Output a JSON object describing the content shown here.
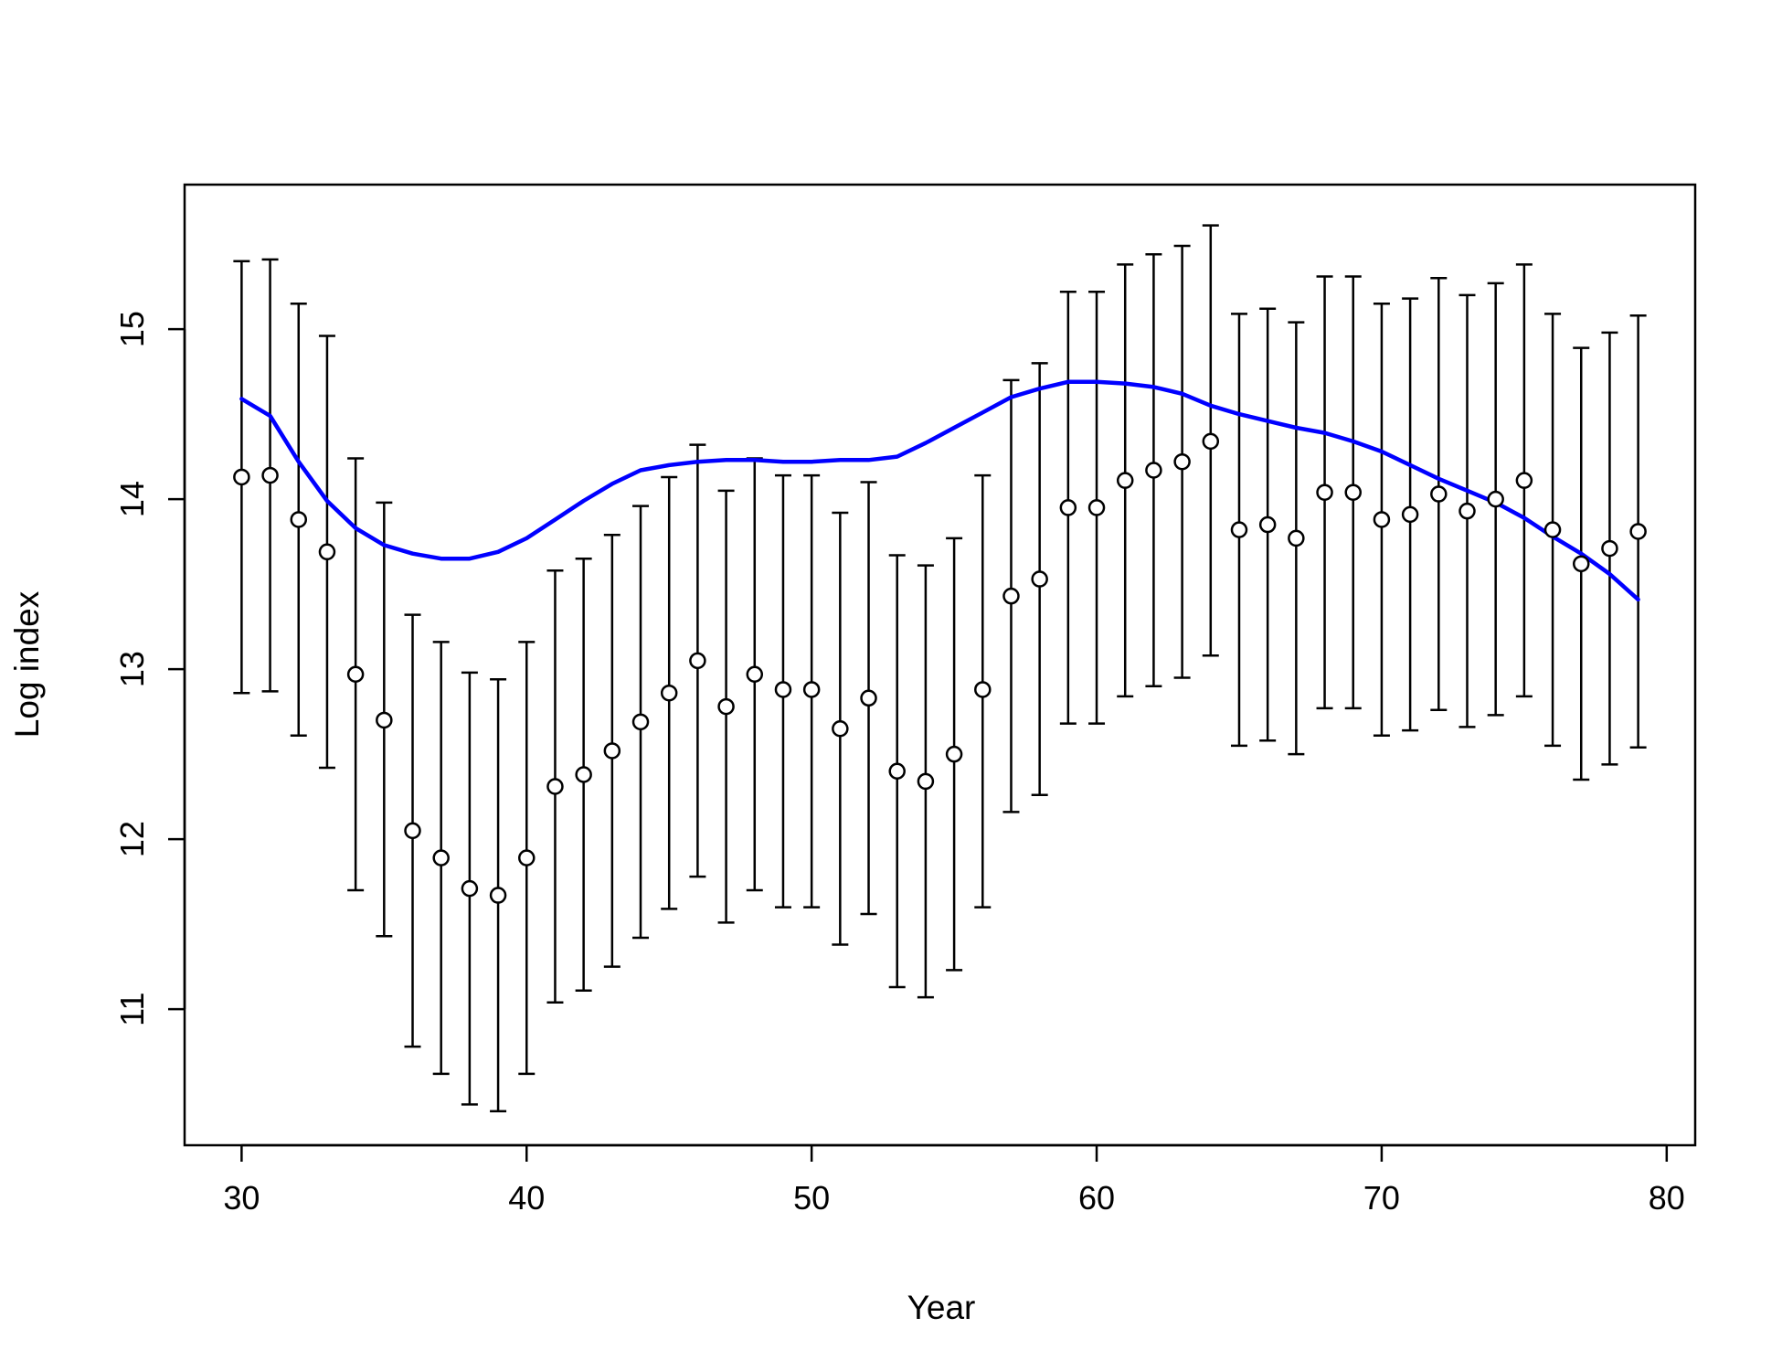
{
  "chart_data": {
    "type": "scatter",
    "title": "",
    "xlabel": "Year",
    "ylabel": "Log index",
    "xlim": [
      28,
      81
    ],
    "ylim": [
      10.2,
      15.85
    ],
    "x_ticks": [
      30,
      40,
      50,
      60,
      70,
      80
    ],
    "y_ticks": [
      11,
      12,
      13,
      14,
      15
    ],
    "grid": false,
    "colors": {
      "points": "#000000",
      "line": "#0000ff",
      "axes": "#000000"
    },
    "series": [
      {
        "kind": "points-with-error-bars",
        "x": [
          30,
          31,
          32,
          33,
          34,
          35,
          36,
          37,
          38,
          39,
          40,
          41,
          42,
          43,
          44,
          45,
          46,
          47,
          48,
          49,
          50,
          51,
          52,
          53,
          54,
          55,
          56,
          57,
          58,
          59,
          60,
          61,
          62,
          63,
          64,
          65,
          66,
          67,
          68,
          69,
          70,
          71,
          72,
          73,
          74,
          75,
          76,
          77,
          78,
          79
        ],
        "y": [
          14.13,
          14.14,
          13.88,
          13.69,
          12.97,
          12.7,
          12.05,
          11.89,
          11.71,
          11.67,
          11.89,
          12.31,
          12.38,
          12.52,
          12.69,
          12.86,
          13.05,
          12.78,
          12.97,
          12.88,
          12.88,
          12.65,
          12.83,
          12.4,
          12.34,
          12.5,
          12.88,
          13.43,
          13.53,
          13.95,
          13.95,
          14.11,
          14.17,
          14.22,
          14.34,
          13.82,
          13.85,
          13.77,
          14.04,
          14.04,
          13.88,
          13.91,
          14.03,
          13.93,
          14.0,
          14.11,
          13.82,
          13.62,
          13.71,
          13.81
        ],
        "lower": [
          12.86,
          12.87,
          12.61,
          12.42,
          11.7,
          11.43,
          10.78,
          10.62,
          10.44,
          10.4,
          10.62,
          11.04,
          11.11,
          11.25,
          11.42,
          11.59,
          11.78,
          11.51,
          11.7,
          11.6,
          11.6,
          11.38,
          11.56,
          11.13,
          11.07,
          11.23,
          11.6,
          12.16,
          12.26,
          12.68,
          12.68,
          12.84,
          12.9,
          12.95,
          13.08,
          12.55,
          12.58,
          12.5,
          12.77,
          12.77,
          12.61,
          12.64,
          12.76,
          12.66,
          12.73,
          12.84,
          12.55,
          12.35,
          12.44,
          12.54
        ],
        "upper": [
          15.4,
          15.41,
          15.15,
          14.96,
          14.24,
          13.98,
          13.32,
          13.16,
          12.98,
          12.94,
          13.16,
          13.58,
          13.65,
          13.79,
          13.96,
          14.13,
          14.32,
          14.05,
          14.24,
          14.14,
          14.14,
          13.92,
          14.1,
          13.67,
          13.61,
          13.77,
          14.14,
          14.7,
          14.8,
          15.22,
          15.22,
          15.38,
          15.44,
          15.49,
          15.61,
          15.09,
          15.12,
          15.04,
          15.31,
          15.31,
          15.15,
          15.18,
          15.3,
          15.2,
          15.27,
          15.38,
          15.09,
          14.89,
          14.98,
          15.08
        ]
      },
      {
        "kind": "line",
        "x": [
          30,
          31,
          32,
          33,
          34,
          35,
          36,
          37,
          38,
          39,
          40,
          41,
          42,
          43,
          44,
          45,
          46,
          47,
          48,
          49,
          50,
          51,
          52,
          53,
          54,
          55,
          56,
          57,
          58,
          59,
          60,
          61,
          62,
          63,
          64,
          65,
          66,
          67,
          68,
          69,
          70,
          71,
          72,
          73,
          74,
          75,
          76,
          77,
          78,
          79
        ],
        "y": [
          14.59,
          14.49,
          14.22,
          13.99,
          13.83,
          13.73,
          13.68,
          13.65,
          13.65,
          13.69,
          13.77,
          13.88,
          13.99,
          14.09,
          14.17,
          14.2,
          14.22,
          14.23,
          14.23,
          14.22,
          14.22,
          14.23,
          14.23,
          14.25,
          14.33,
          14.42,
          14.51,
          14.6,
          14.65,
          14.69,
          14.69,
          14.68,
          14.66,
          14.62,
          14.55,
          14.5,
          14.46,
          14.42,
          14.39,
          14.34,
          14.28,
          14.2,
          14.12,
          14.05,
          13.98,
          13.89,
          13.78,
          13.68,
          13.56,
          13.41
        ]
      }
    ]
  }
}
